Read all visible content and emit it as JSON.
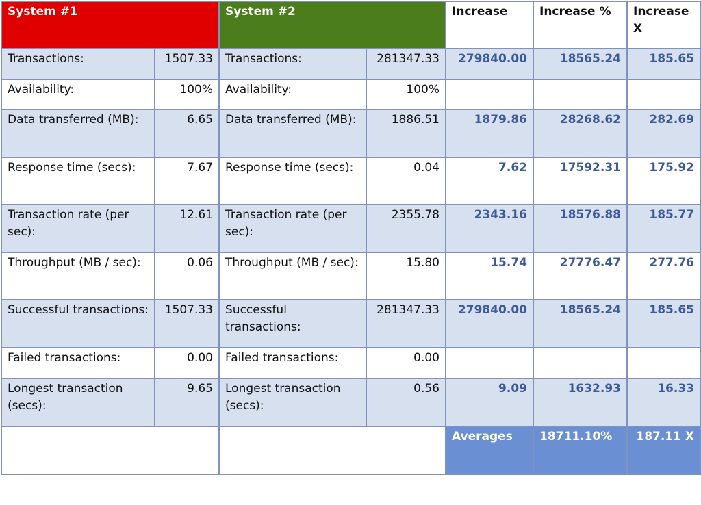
{
  "headers": {
    "system1": "System #1",
    "system2": "System #2",
    "increase": "Increase",
    "increase_pct": "Increase %",
    "increase_x": "Increase X"
  },
  "colors": {
    "system1_header": "#e00000",
    "system2_header": "#4b7d1c",
    "band_row": "#d6e0ee",
    "calc_text": "#3c5a99",
    "averages_bg": "#6a8fd2",
    "border": "#8193bc"
  },
  "rows": [
    {
      "label1": "Transactions:",
      "value1": "1507.33",
      "label2": "Transactions:",
      "value2": "281347.33",
      "increase": "279840.00",
      "increase_pct": "18565.24",
      "increase_x": "185.65"
    },
    {
      "label1": "Availability:",
      "value1": "100%",
      "label2": "Availability:",
      "value2": "100%",
      "increase": "",
      "increase_pct": "",
      "increase_x": ""
    },
    {
      "label1": "Data transferred (MB):",
      "value1": "6.65",
      "label2": "Data transferred (MB):",
      "value2": "1886.51",
      "increase": "1879.86",
      "increase_pct": "28268.62",
      "increase_x": "282.69"
    },
    {
      "label1": "Response time (secs):",
      "value1": "7.67",
      "label2": "Response time (secs):",
      "value2": "0.04",
      "increase": "7.62",
      "increase_pct": "17592.31",
      "increase_x": "175.92"
    },
    {
      "label1": "Transaction rate (per sec):",
      "value1": "12.61",
      "label2": "Transaction rate (per sec):",
      "value2": "2355.78",
      "increase": "2343.16",
      "increase_pct": "18576.88",
      "increase_x": "185.77"
    },
    {
      "label1": "Throughput (MB / sec):",
      "value1": "0.06",
      "label2": "Throughput (MB / sec):",
      "value2": "15.80",
      "increase": "15.74",
      "increase_pct": "27776.47",
      "increase_x": "277.76"
    },
    {
      "label1": "Successful transactions:",
      "value1": "1507.33",
      "label2": "Successful transactions:",
      "value2": "281347.33",
      "increase": "279840.00",
      "increase_pct": "18565.24",
      "increase_x": "185.65"
    },
    {
      "label1": "Failed transactions:",
      "value1": "0.00",
      "label2": "Failed transactions:",
      "value2": "0.00",
      "increase": "",
      "increase_pct": "",
      "increase_x": ""
    },
    {
      "label1": "Longest transaction (secs):",
      "value1": "9.65",
      "label2": "Longest transaction (secs):",
      "value2": "0.56",
      "increase": "9.09",
      "increase_pct": "1632.93",
      "increase_x": "16.33"
    }
  ],
  "averages": {
    "label": "Averages",
    "increase_pct": "18711.10%",
    "increase_x": "187.11 X"
  }
}
